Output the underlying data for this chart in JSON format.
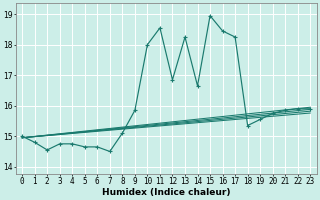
{
  "title": "",
  "xlabel": "Humidex (Indice chaleur)",
  "bg_color": "#cceee8",
  "line_color": "#1a7a6e",
  "xlim": [
    -0.5,
    23.5
  ],
  "ylim": [
    13.75,
    19.35
  ],
  "yticks": [
    14,
    15,
    16,
    17,
    18,
    19
  ],
  "xticks": [
    0,
    1,
    2,
    3,
    4,
    5,
    6,
    7,
    8,
    9,
    10,
    11,
    12,
    13,
    14,
    15,
    16,
    17,
    18,
    19,
    20,
    21,
    22,
    23
  ],
  "main_x": [
    0,
    1,
    2,
    3,
    4,
    5,
    6,
    7,
    8,
    9,
    10,
    11,
    12,
    13,
    14,
    15,
    16,
    17,
    18,
    19,
    20,
    21,
    22,
    23
  ],
  "main_y": [
    15.0,
    14.8,
    14.55,
    14.75,
    14.75,
    14.65,
    14.65,
    14.5,
    15.1,
    15.85,
    18.0,
    18.55,
    16.85,
    18.25,
    16.65,
    18.95,
    18.45,
    18.25,
    15.35,
    15.55,
    15.75,
    15.85,
    15.9,
    15.9
  ],
  "trend_lines": [
    {
      "x": [
        0,
        23
      ],
      "y": [
        14.95,
        15.95
      ]
    },
    {
      "x": [
        0,
        23
      ],
      "y": [
        14.95,
        15.88
      ]
    },
    {
      "x": [
        0,
        23
      ],
      "y": [
        14.95,
        15.82
      ]
    },
    {
      "x": [
        0,
        23
      ],
      "y": [
        14.95,
        15.76
      ]
    }
  ],
  "grid_color": "#ffffff",
  "tick_fontsize": 5.5,
  "xlabel_fontsize": 6.5,
  "marker": "+",
  "markersize": 3.0,
  "linewidth": 0.85
}
